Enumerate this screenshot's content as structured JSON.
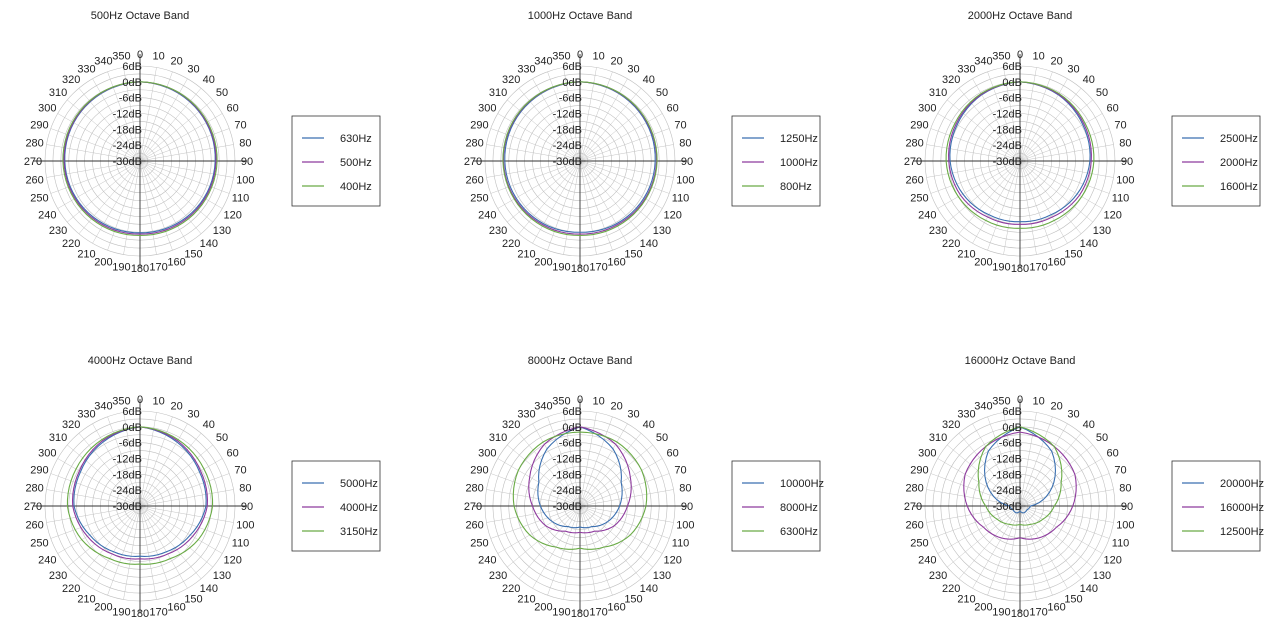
{
  "chart_data": [
    {
      "type": "polar-line",
      "title": "500Hz Octave Band",
      "radial_ticks": [
        "6dB",
        "0dB",
        "-6dB",
        "-12dB",
        "-18dB",
        "-24dB",
        "-30dB"
      ],
      "rlim": [
        -30,
        6
      ],
      "angle_ticks": [
        0,
        10,
        20,
        30,
        40,
        50,
        60,
        70,
        80,
        90,
        100,
        110,
        120,
        130,
        140,
        150,
        160,
        170,
        180,
        190,
        200,
        210,
        220,
        230,
        240,
        250,
        260,
        270,
        280,
        290,
        300,
        310,
        320,
        330,
        340,
        350
      ],
      "grid": true,
      "legend_position": "right",
      "angles": [
        0,
        30,
        60,
        90,
        120,
        150,
        180,
        210,
        240,
        270,
        300,
        330
      ],
      "series": [
        {
          "name": "630Hz",
          "color": "#3a6fb0",
          "values": [
            0,
            -0.5,
            -1,
            -1.5,
            -2,
            -2.5,
            -2.8,
            -2.5,
            -2,
            -1.5,
            -1,
            -0.5
          ]
        },
        {
          "name": "500Hz",
          "color": "#8e3a9e",
          "values": [
            0,
            -0.3,
            -0.8,
            -1.2,
            -1.6,
            -2,
            -2.3,
            -2,
            -1.6,
            -1.2,
            -0.8,
            -0.3
          ]
        },
        {
          "name": "400Hz",
          "color": "#6aab46",
          "values": [
            0,
            -0.2,
            -0.5,
            -0.8,
            -1.2,
            -1.5,
            -1.8,
            -1.5,
            -1.2,
            -0.8,
            -0.5,
            -0.2
          ]
        }
      ]
    },
    {
      "type": "polar-line",
      "title": "1000Hz Octave Band",
      "radial_ticks": [
        "6dB",
        "0dB",
        "-6dB",
        "-12dB",
        "-18dB",
        "-24dB",
        "-30dB"
      ],
      "rlim": [
        -30,
        6
      ],
      "angle_ticks": [
        0,
        10,
        20,
        30,
        40,
        50,
        60,
        70,
        80,
        90,
        100,
        110,
        120,
        130,
        140,
        150,
        160,
        170,
        180,
        190,
        200,
        210,
        220,
        230,
        240,
        250,
        260,
        270,
        280,
        290,
        300,
        310,
        320,
        330,
        340,
        350
      ],
      "grid": true,
      "legend_position": "right",
      "angles": [
        0,
        30,
        60,
        90,
        120,
        150,
        180,
        210,
        240,
        270,
        300,
        330
      ],
      "series": [
        {
          "name": "1250Hz",
          "color": "#3a6fb0",
          "values": [
            0,
            -0.5,
            -1,
            -1.5,
            -2,
            -2.5,
            -3,
            -2.5,
            -2,
            -1.5,
            -1,
            -0.5
          ]
        },
        {
          "name": "1000Hz",
          "color": "#8e3a9e",
          "values": [
            0,
            -0.3,
            -0.7,
            -1,
            -1.5,
            -2,
            -2.3,
            -2,
            -1.5,
            -1,
            -0.7,
            -0.3
          ]
        },
        {
          "name": "800Hz",
          "color": "#6aab46",
          "values": [
            0,
            -0.2,
            -0.5,
            -0.8,
            -1.2,
            -1.5,
            -1.8,
            -1.5,
            -1.2,
            -0.8,
            -0.5,
            -0.2
          ]
        }
      ]
    },
    {
      "type": "polar-line",
      "title": "2000Hz Octave Band",
      "radial_ticks": [
        "6dB",
        "0dB",
        "-6dB",
        "-12dB",
        "-18dB",
        "-24dB",
        "-30dB"
      ],
      "rlim": [
        -30,
        6
      ],
      "angle_ticks": [
        0,
        10,
        20,
        30,
        40,
        50,
        60,
        70,
        80,
        90,
        100,
        110,
        120,
        130,
        140,
        150,
        160,
        170,
        180,
        190,
        200,
        210,
        220,
        230,
        240,
        250,
        260,
        270,
        280,
        290,
        300,
        310,
        320,
        330,
        340,
        350
      ],
      "grid": true,
      "legend_position": "right",
      "angles": [
        0,
        30,
        60,
        90,
        120,
        150,
        180,
        210,
        240,
        270,
        300,
        330
      ],
      "series": [
        {
          "name": "2500Hz",
          "color": "#3a6fb0",
          "values": [
            0,
            -1,
            -2.5,
            -3.5,
            -5,
            -6.5,
            -7,
            -6.5,
            -5,
            -3.5,
            -2.5,
            -1
          ]
        },
        {
          "name": "2000Hz",
          "color": "#8e3a9e",
          "values": [
            0,
            -0.8,
            -2,
            -3,
            -4,
            -5.5,
            -6,
            -5.5,
            -4,
            -3,
            -2,
            -0.8
          ]
        },
        {
          "name": "1600Hz",
          "color": "#6aab46",
          "values": [
            0,
            -0.5,
            -1.5,
            -2,
            -3,
            -4,
            -4.5,
            -4,
            -3,
            -2,
            -1.5,
            -0.5
          ]
        }
      ]
    },
    {
      "type": "polar-line",
      "title": "4000Hz Octave Band",
      "radial_ticks": [
        "6dB",
        "0dB",
        "-6dB",
        "-12dB",
        "-18dB",
        "-24dB",
        "-30dB"
      ],
      "rlim": [
        -30,
        6
      ],
      "angle_ticks": [
        0,
        10,
        20,
        30,
        40,
        50,
        60,
        70,
        80,
        90,
        100,
        110,
        120,
        130,
        140,
        150,
        160,
        170,
        180,
        190,
        200,
        210,
        220,
        230,
        240,
        250,
        260,
        270,
        280,
        290,
        300,
        310,
        320,
        330,
        340,
        350
      ],
      "grid": true,
      "legend_position": "right",
      "angles": [
        0,
        30,
        60,
        90,
        120,
        150,
        180,
        210,
        240,
        270,
        300,
        330
      ],
      "series": [
        {
          "name": "5000Hz",
          "color": "#3a6fb0",
          "values": [
            0,
            -2,
            -4,
            -5,
            -8,
            -10,
            -11,
            -10,
            -8,
            -5,
            -4,
            -2
          ]
        },
        {
          "name": "4000Hz",
          "color": "#8e3a9e",
          "values": [
            0,
            -1.5,
            -3.5,
            -4.5,
            -7,
            -9,
            -10,
            -9,
            -7,
            -4.5,
            -3.5,
            -1.5
          ]
        },
        {
          "name": "3150Hz",
          "color": "#6aab46",
          "values": [
            0,
            -1,
            -2,
            -2.5,
            -4.5,
            -7,
            -8,
            -7,
            -4.5,
            -2.5,
            -2,
            -1
          ]
        }
      ]
    },
    {
      "type": "polar-line",
      "title": "8000Hz Octave Band",
      "radial_ticks": [
        "6dB",
        "0dB",
        "-6dB",
        "-12dB",
        "-18dB",
        "-24dB",
        "-30dB"
      ],
      "rlim": [
        -30,
        6
      ],
      "angle_ticks": [
        0,
        10,
        20,
        30,
        40,
        50,
        60,
        70,
        80,
        90,
        100,
        110,
        120,
        130,
        140,
        150,
        160,
        170,
        180,
        190,
        200,
        210,
        220,
        230,
        240,
        250,
        260,
        270,
        280,
        290,
        300,
        310,
        320,
        330,
        340,
        350
      ],
      "grid": true,
      "legend_position": "right",
      "angles": [
        0,
        30,
        60,
        90,
        120,
        150,
        180,
        210,
        240,
        270,
        300,
        330
      ],
      "series": [
        {
          "name": "10000Hz",
          "color": "#3a6fb0",
          "values": [
            0,
            -5,
            -12,
            -15,
            -18,
            -21,
            -22,
            -21,
            -18,
            -15,
            -12,
            -5
          ]
        },
        {
          "name": "8000Hz",
          "color": "#8e3a9e",
          "values": [
            0,
            -3,
            -8,
            -12,
            -15,
            -19,
            -20,
            -19,
            -15,
            -12,
            -8,
            -3
          ]
        },
        {
          "name": "6300Hz",
          "color": "#6aab46",
          "values": [
            -2,
            -2,
            -3,
            -5,
            -8,
            -12,
            -14,
            -12,
            -8,
            -5,
            -3,
            -2
          ]
        }
      ]
    },
    {
      "type": "polar-line",
      "title": "16000Hz Octave Band",
      "radial_ticks": [
        "6dB",
        "0dB",
        "-6dB",
        "-12dB",
        "-18dB",
        "-24dB",
        "-30dB"
      ],
      "rlim": [
        -30,
        6
      ],
      "angle_ticks": [
        0,
        10,
        20,
        30,
        40,
        50,
        60,
        70,
        80,
        90,
        100,
        110,
        120,
        130,
        140,
        150,
        160,
        170,
        180,
        190,
        200,
        210,
        220,
        230,
        240,
        250,
        260,
        270,
        280,
        290,
        300,
        310,
        320,
        330,
        340,
        350
      ],
      "grid": true,
      "legend_position": "right",
      "angles": [
        0,
        30,
        60,
        90,
        120,
        150,
        180,
        210,
        240,
        270,
        300,
        330
      ],
      "series": [
        {
          "name": "20000Hz",
          "color": "#3a6fb0",
          "values": [
            0,
            -6,
            -16,
            -26,
            -27,
            -27,
            -28,
            -27,
            -27,
            -26,
            -16,
            -6
          ]
        },
        {
          "name": "16000Hz",
          "color": "#8e3a9e",
          "values": [
            -2,
            -4,
            -6,
            -10,
            -14,
            -16,
            -18,
            -16,
            -14,
            -10,
            -6,
            -4
          ]
        },
        {
          "name": "12500Hz",
          "color": "#6aab46",
          "values": [
            0,
            -4,
            -12,
            -17,
            -20,
            -22,
            -23,
            -22,
            -20,
            -17,
            -12,
            -4
          ]
        }
      ]
    }
  ]
}
